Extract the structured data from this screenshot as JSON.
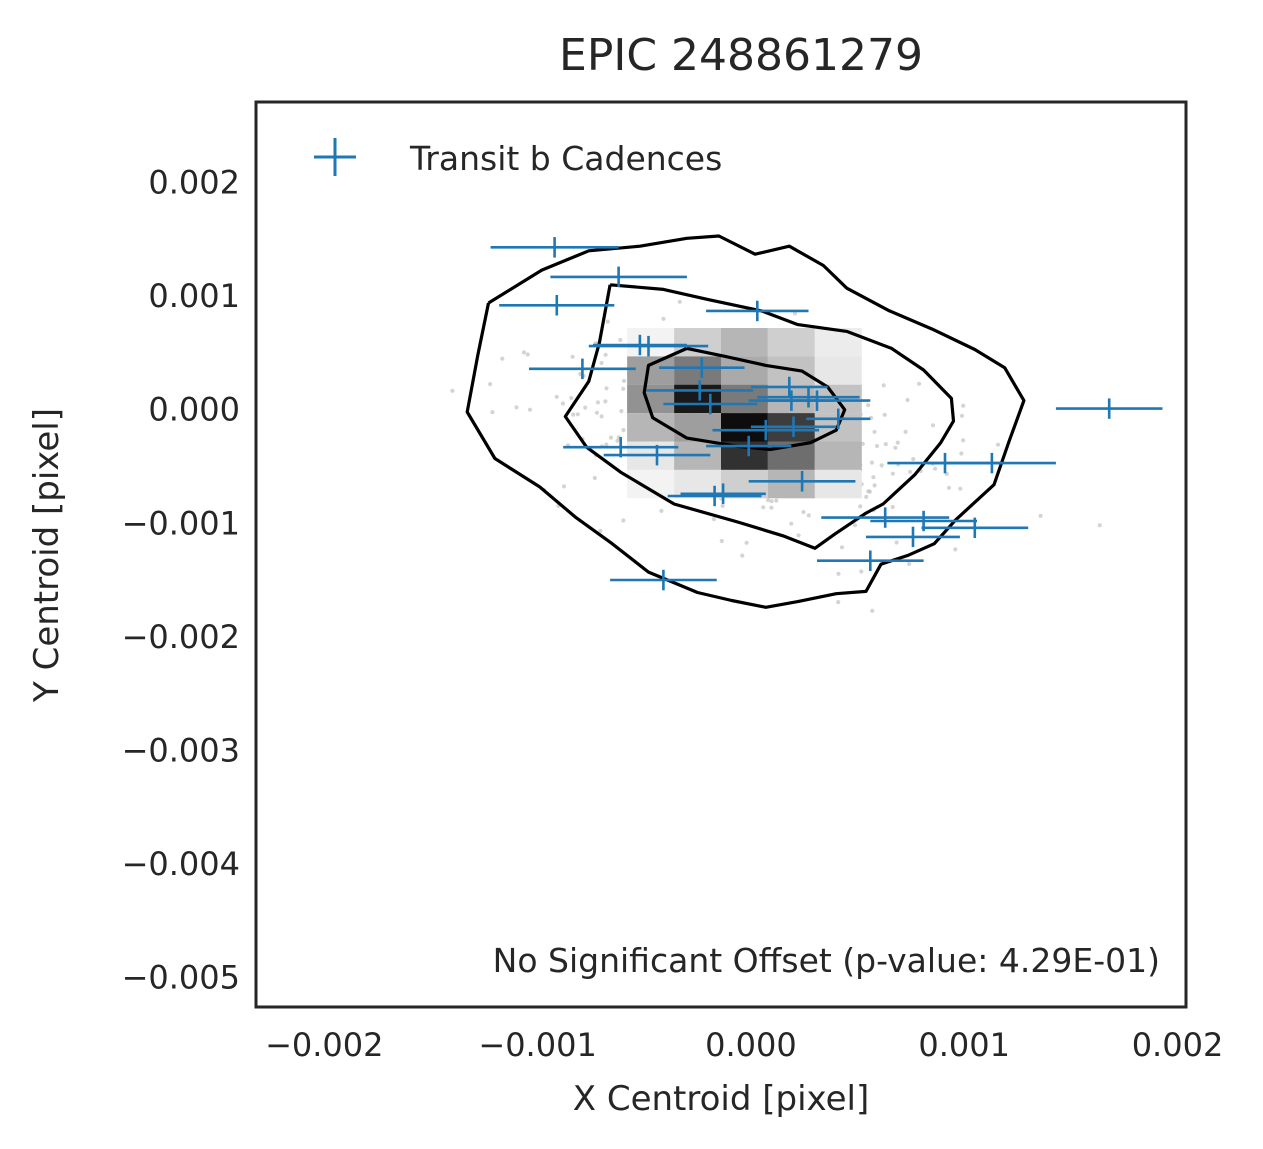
{
  "chart_data": {
    "type": "scatter",
    "title": "EPIC 248861279",
    "xlabel": "X Centroid [pixel]",
    "ylabel": "Y Centroid [pixel]",
    "xlim": [
      -0.00232,
      0.00204
    ],
    "ylim": [
      -0.00526,
      0.00271
    ],
    "x_ticks": [
      -0.002,
      -0.001,
      0.0,
      0.001,
      0.002
    ],
    "x_tick_labels": [
      "−0.002",
      "−0.001",
      "0.000",
      "0.001",
      "0.002"
    ],
    "y_ticks": [
      0.002,
      0.001,
      0.0,
      -0.001,
      -0.002,
      -0.003,
      -0.004,
      -0.005
    ],
    "y_tick_labels": [
      "0.002",
      "0.001",
      "0.000",
      "−0.001",
      "−0.002",
      "−0.003",
      "−0.004",
      "−0.005"
    ],
    "grid": false,
    "legend": {
      "placement": "top-left",
      "entries": [
        "Transit b Cadences"
      ]
    },
    "annotation": "No Significant Offset (p-value: 4.29E-01)",
    "colors": {
      "transit": "#1f77b4",
      "contour": "#000000",
      "background_points": "#bdbdbd",
      "frame": "#262626"
    },
    "histogram": {
      "x_edges": [
        -0.00058,
        -0.00036,
        -0.00014,
        8e-05,
        0.0003,
        0.00052
      ],
      "y_edges": [
        0.00072,
        0.00047,
        0.00022,
        -3e-05,
        -0.00028,
        -0.00053,
        -0.00078
      ],
      "counts": [
        [
          0.05,
          0.2,
          0.3,
          0.2,
          0.08
        ],
        [
          0.4,
          0.55,
          0.35,
          0.25,
          0.1
        ],
        [
          0.45,
          0.95,
          0.55,
          0.3,
          0.25
        ],
        [
          0.3,
          0.4,
          1.0,
          0.8,
          0.25
        ],
        [
          0.1,
          0.3,
          0.85,
          0.6,
          0.3
        ],
        [
          0.05,
          0.1,
          0.2,
          0.3,
          0.1
        ]
      ]
    },
    "contours": [
      {
        "level": "outer",
        "points": [
          [
            -0.00123,
            0.00094
          ],
          [
            -0.00098,
            0.00123
          ],
          [
            -0.00076,
            0.0014
          ],
          [
            -0.00052,
            0.00144
          ],
          [
            -0.0003,
            0.00151
          ],
          [
            -0.00015,
            0.00153
          ],
          [
            2e-05,
            0.00137
          ],
          [
            0.00018,
            0.00144
          ],
          [
            0.00034,
            0.00127
          ],
          [
            0.00045,
            0.00107
          ],
          [
            0.00065,
            0.00087
          ],
          [
            0.00085,
            0.00071
          ],
          [
            0.00105,
            0.00053
          ],
          [
            0.00119,
            0.00037
          ],
          [
            0.00128,
            8e-05
          ],
          [
            0.00121,
            -0.00028
          ],
          [
            0.00114,
            -0.00066
          ],
          [
            0.00096,
            -0.00097
          ],
          [
            0.00086,
            -0.00118
          ],
          [
            0.00074,
            -0.00128
          ],
          [
            0.00061,
            -0.00136
          ],
          [
            0.00054,
            -0.0016
          ],
          [
            0.0004,
            -0.00162
          ],
          [
            0.00022,
            -0.00169
          ],
          [
            7e-05,
            -0.00174
          ],
          [
            -9e-05,
            -0.00168
          ],
          [
            -0.00025,
            -0.00161
          ],
          [
            -0.00048,
            -0.00143
          ],
          [
            -0.00065,
            -0.00118
          ],
          [
            -0.00082,
            -0.00095
          ],
          [
            -0.00099,
            -0.00068
          ],
          [
            -0.0012,
            -0.00043
          ],
          [
            -0.00133,
            -2e-05
          ],
          [
            -0.00128,
            0.00048
          ],
          [
            -0.00123,
            0.00094
          ]
        ]
      },
      {
        "level": "middle",
        "points": [
          [
            -0.00066,
            0.0011
          ],
          [
            -0.00041,
            0.00106
          ],
          [
            -0.0002,
            0.00097
          ],
          [
            5e-05,
            0.00087
          ],
          [
            0.00022,
            0.00075
          ],
          [
            0.00045,
            0.00069
          ],
          [
            0.00066,
            0.00054
          ],
          [
            0.00081,
            0.00035
          ],
          [
            0.00094,
            0.0001
          ],
          [
            0.00095,
            -0.0001
          ],
          [
            0.00089,
            -0.00029
          ],
          [
            0.00077,
            -0.00057
          ],
          [
            0.00062,
            -0.00083
          ],
          [
            0.00054,
            -0.00091
          ],
          [
            0.00039,
            -0.0011
          ],
          [
            0.0003,
            -0.00122
          ],
          [
            0.00015,
            -0.00111
          ],
          [
            -6e-05,
            -0.00099
          ],
          [
            -0.00036,
            -0.00083
          ],
          [
            -0.00061,
            -0.00055
          ],
          [
            -0.00077,
            -0.00033
          ],
          [
            -0.00087,
            -6e-05
          ],
          [
            -0.00076,
            0.00025
          ],
          [
            -0.00071,
            0.00059
          ],
          [
            -0.00066,
            0.0011
          ]
        ]
      },
      {
        "level": "inner",
        "points": [
          [
            -0.0003,
            0.00054
          ],
          [
            -0.00012,
            0.00047
          ],
          [
            7e-05,
            0.00039
          ],
          [
            0.00024,
            0.00034
          ],
          [
            0.00036,
            0.0002
          ],
          [
            0.00044,
            0.0
          ],
          [
            0.0004,
            -0.00018
          ],
          [
            0.00028,
            -0.00029
          ],
          [
            9e-05,
            -0.00035
          ],
          [
            -7e-05,
            -0.00032
          ],
          [
            -0.0003,
            -0.00025
          ],
          [
            -0.00046,
            -7e-05
          ],
          [
            -0.0005,
            0.00015
          ],
          [
            -0.00048,
            0.00039
          ],
          [
            -0.0003,
            0.00054
          ]
        ]
      }
    ],
    "transit_b_cadences": {
      "x": [
        -0.00092,
        -0.00062,
        -0.00091,
        -0.00079,
        -0.00052,
        -0.00048,
        -0.00023,
        -0.00024,
        -0.00019,
        3e-05,
        0.00018,
        0.00027,
        0.00019,
        0.00031,
        0.0002,
        0.00041,
        -0.00061,
        -0.00044,
        -0.00017,
        -0.00013,
        0.00024,
        7e-05,
        -1e-05,
        0.00091,
        0.00113,
        0.00081,
        0.00105,
        0.00063,
        0.00076,
        0.00056,
        -0.00041,
        0.00168
      ],
      "xerr": [
        0.0003,
        0.00032,
        0.00027,
        0.00025,
        0.00022,
        0.00028,
        0.0002,
        0.00025,
        0.00022,
        0.00024,
        0.00018,
        0.00024,
        0.0002,
        0.00025,
        0.0002,
        0.00015,
        0.00027,
        0.00025,
        0.00022,
        0.0002,
        0.00025,
        0.00025,
        0.0002,
        0.00027,
        0.0003,
        0.00025,
        0.00025,
        0.0003,
        0.00022,
        0.00025,
        0.00025,
        0.00025
      ],
      "y": [
        0.00143,
        0.00117,
        0.00092,
        0.00036,
        0.00057,
        0.00056,
        0.00037,
        0.00017,
        5e-05,
        0.00087,
        0.0002,
        0.00011,
        8e-05,
        8e-05,
        -0.00015,
        -8e-05,
        -0.00033,
        -0.0004,
        -0.00076,
        -0.00074,
        -0.00063,
        -0.00018,
        -0.00032,
        -0.00047,
        -0.00047,
        -0.00098,
        -0.00104,
        -0.00095,
        -0.00112,
        -0.00133,
        -0.0015,
        1e-05
      ],
      "yerr": [
        9e-05,
        9e-05,
        9e-05,
        9e-05,
        9e-05,
        9e-05,
        9e-05,
        9e-05,
        9e-05,
        9e-05,
        9e-05,
        9e-05,
        9e-05,
        9e-05,
        9e-05,
        9e-05,
        9e-05,
        9e-05,
        9e-05,
        9e-05,
        9e-05,
        9e-05,
        9e-05,
        9e-05,
        9e-05,
        9e-05,
        9e-05,
        9e-05,
        9e-05,
        9e-05,
        9e-05,
        9e-05
      ]
    }
  }
}
